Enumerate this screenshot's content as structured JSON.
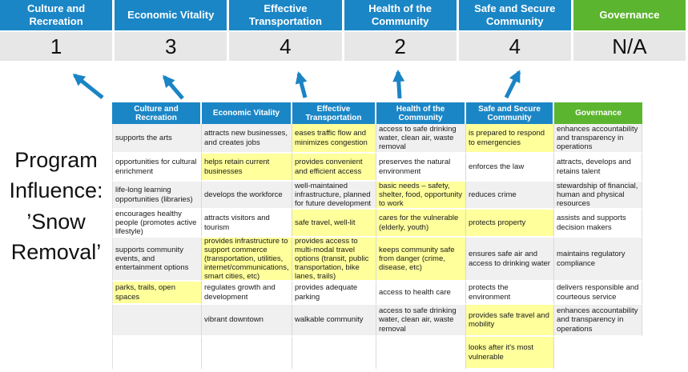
{
  "title": {
    "text": "Program Influence: ’Snow Removal’"
  },
  "colors": {
    "header_blue": "#1B86C6",
    "header_green": "#5CB52F",
    "score_row_gray": "#E7E7E7",
    "highlight_yellow": "#FFFF9C",
    "band_gray": "#F0F0F0",
    "arrow_blue": "#1B84C4"
  },
  "scoreboard": {
    "items": [
      {
        "label": "Culture and Recreation",
        "score": "1"
      },
      {
        "label": "Economic Vitality",
        "score": "3"
      },
      {
        "label": "Effective Transportation",
        "score": "4"
      },
      {
        "label": "Health of the Community",
        "score": "2"
      },
      {
        "label": "Safe and Secure Community",
        "score": "4"
      },
      {
        "label": "Governance",
        "score": "N/A"
      }
    ]
  },
  "matrix": {
    "columns": [
      "Culture and Recreation",
      "Economic Vitality",
      "Effective Transportation",
      "Health of the Community",
      "Safe and Secure Community",
      "Governance"
    ],
    "rows": [
      [
        {
          "text": "supports the arts"
        },
        {
          "text": "attracts new businesses, and creates jobs"
        },
        {
          "text": "eases traffic flow and minimizes congestion",
          "highlight": true
        },
        {
          "text": "access to safe drinking water, clean air, waste removal"
        },
        {
          "text": "is prepared to respond to emergencies",
          "highlight": true
        },
        {
          "text": "enhances accountability and transparency in operations"
        }
      ],
      [
        {
          "text": "opportunities for cultural enrichment"
        },
        {
          "text": "helps retain current businesses",
          "highlight": true
        },
        {
          "text": "provides convenient and efficient access",
          "highlight": true
        },
        {
          "text": "preserves the natural environment"
        },
        {
          "text": "enforces the law"
        },
        {
          "text": "attracts, develops and retains talent"
        }
      ],
      [
        {
          "text": "life-long learning opportunities (libraries)"
        },
        {
          "text": "develops the workforce"
        },
        {
          "text": "well-maintained infrastructure, planned for future development"
        },
        {
          "text": "basic needs – safety, shelter, food, opportunity to work",
          "highlight": true
        },
        {
          "text": "reduces crime"
        },
        {
          "text": "stewardship of financial, human and physical resources"
        }
      ],
      [
        {
          "text": "encourages healthy people (promotes active lifestyle)"
        },
        {
          "text": "attracts visitors and tourism"
        },
        {
          "text": "safe travel, well-lit",
          "highlight": true
        },
        {
          "text": "cares for the vulnerable (elderly, youth)",
          "highlight": true
        },
        {
          "text": "protects property",
          "highlight": true
        },
        {
          "text": "assists and supports decision makers"
        }
      ],
      [
        {
          "text": "supports community events, and entertainment options"
        },
        {
          "text": "provides infrastructure to support commerce (transportation, utilities, internet/communications, smart cities, etc)",
          "highlight": true
        },
        {
          "text": "provides access to multi-modal travel options (transit, public transportation, bike lanes, trails)",
          "highlight": true
        },
        {
          "text": "keeps community safe from danger (crime, disease, etc)",
          "highlight": true
        },
        {
          "text": "ensures safe air and access to drinking water"
        },
        {
          "text": "maintains regulatory compliance"
        }
      ],
      [
        {
          "text": "parks, trails, open spaces",
          "highlight": true
        },
        {
          "text": "regulates growth and development"
        },
        {
          "text": "provides adequate parking"
        },
        {
          "text": "access to health care"
        },
        {
          "text": "protects the environment"
        },
        {
          "text": "delivers responsible and courteous service"
        }
      ],
      [
        {
          "text": ""
        },
        {
          "text": "vibrant downtown"
        },
        {
          "text": "walkable community"
        },
        {
          "text": "access to safe drinking water, clean air, waste removal"
        },
        {
          "text": "provides safe travel and mobility",
          "highlight": true
        },
        {
          "text": "enhances accountability and transparency in operations"
        }
      ],
      [
        {
          "text": ""
        },
        {
          "text": ""
        },
        {
          "text": ""
        },
        {
          "text": ""
        },
        {
          "text": "looks after it's most vulnerable",
          "highlight": true
        },
        {
          "text": "",
          "ghost": true
        }
      ]
    ]
  }
}
